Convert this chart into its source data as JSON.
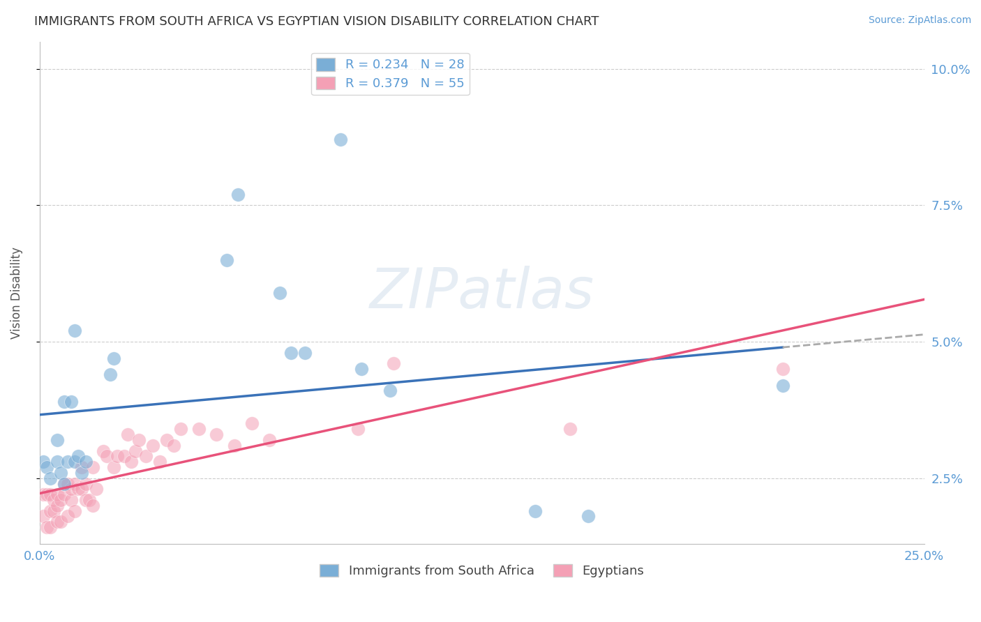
{
  "title": "IMMIGRANTS FROM SOUTH AFRICA VS EGYPTIAN VISION DISABILITY CORRELATION CHART",
  "source": "Source: ZipAtlas.com",
  "ylabel": "Vision Disability",
  "xlim": [
    0.0,
    0.25
  ],
  "ylim": [
    0.013,
    0.105
  ],
  "xticks": [
    0.0,
    0.025,
    0.05,
    0.075,
    0.1,
    0.125,
    0.15,
    0.175,
    0.2,
    0.225,
    0.25
  ],
  "yticks": [
    0.025,
    0.05,
    0.075,
    0.1
  ],
  "ytick_labels": [
    "2.5%",
    "5.0%",
    "7.5%",
    "10.0%"
  ],
  "background_color": "#ffffff",
  "grid_color": "#cccccc",
  "title_color": "#333333",
  "axis_label_color": "#5b9bd5",
  "series1_name": "Immigrants from South Africa",
  "series1_color": "#7aaed6",
  "series1_R": 0.234,
  "series1_N": 28,
  "series1_x": [
    0.001,
    0.002,
    0.003,
    0.005,
    0.005,
    0.006,
    0.007,
    0.007,
    0.008,
    0.009,
    0.01,
    0.01,
    0.011,
    0.012,
    0.013,
    0.02,
    0.021,
    0.053,
    0.056,
    0.068,
    0.071,
    0.075,
    0.085,
    0.091,
    0.099,
    0.14,
    0.155,
    0.21
  ],
  "series1_y": [
    0.028,
    0.027,
    0.025,
    0.028,
    0.032,
    0.026,
    0.024,
    0.039,
    0.028,
    0.039,
    0.028,
    0.052,
    0.029,
    0.026,
    0.028,
    0.044,
    0.047,
    0.065,
    0.077,
    0.059,
    0.048,
    0.048,
    0.087,
    0.045,
    0.041,
    0.019,
    0.018,
    0.042
  ],
  "series2_name": "Egyptians",
  "series2_color": "#f4a0b5",
  "series2_R": 0.379,
  "series2_N": 55,
  "series2_x": [
    0.001,
    0.001,
    0.002,
    0.002,
    0.003,
    0.003,
    0.003,
    0.004,
    0.004,
    0.005,
    0.005,
    0.005,
    0.006,
    0.006,
    0.007,
    0.007,
    0.008,
    0.008,
    0.009,
    0.009,
    0.01,
    0.01,
    0.011,
    0.012,
    0.012,
    0.013,
    0.013,
    0.014,
    0.015,
    0.015,
    0.016,
    0.018,
    0.019,
    0.021,
    0.022,
    0.024,
    0.025,
    0.026,
    0.027,
    0.028,
    0.03,
    0.032,
    0.034,
    0.036,
    0.038,
    0.04,
    0.045,
    0.05,
    0.055,
    0.06,
    0.065,
    0.09,
    0.1,
    0.15,
    0.21
  ],
  "series2_y": [
    0.022,
    0.018,
    0.022,
    0.016,
    0.019,
    0.016,
    0.022,
    0.019,
    0.021,
    0.017,
    0.02,
    0.022,
    0.017,
    0.021,
    0.022,
    0.024,
    0.018,
    0.024,
    0.021,
    0.023,
    0.019,
    0.024,
    0.023,
    0.023,
    0.027,
    0.021,
    0.024,
    0.021,
    0.02,
    0.027,
    0.023,
    0.03,
    0.029,
    0.027,
    0.029,
    0.029,
    0.033,
    0.028,
    0.03,
    0.032,
    0.029,
    0.031,
    0.028,
    0.032,
    0.031,
    0.034,
    0.034,
    0.033,
    0.031,
    0.035,
    0.032,
    0.034,
    0.046,
    0.034,
    0.045
  ],
  "trend1_color": "#3a72b8",
  "trend1_dash_color": "#aaaaaa",
  "trend2_color": "#e8527a",
  "legend_text_color": "#5b9bd5"
}
